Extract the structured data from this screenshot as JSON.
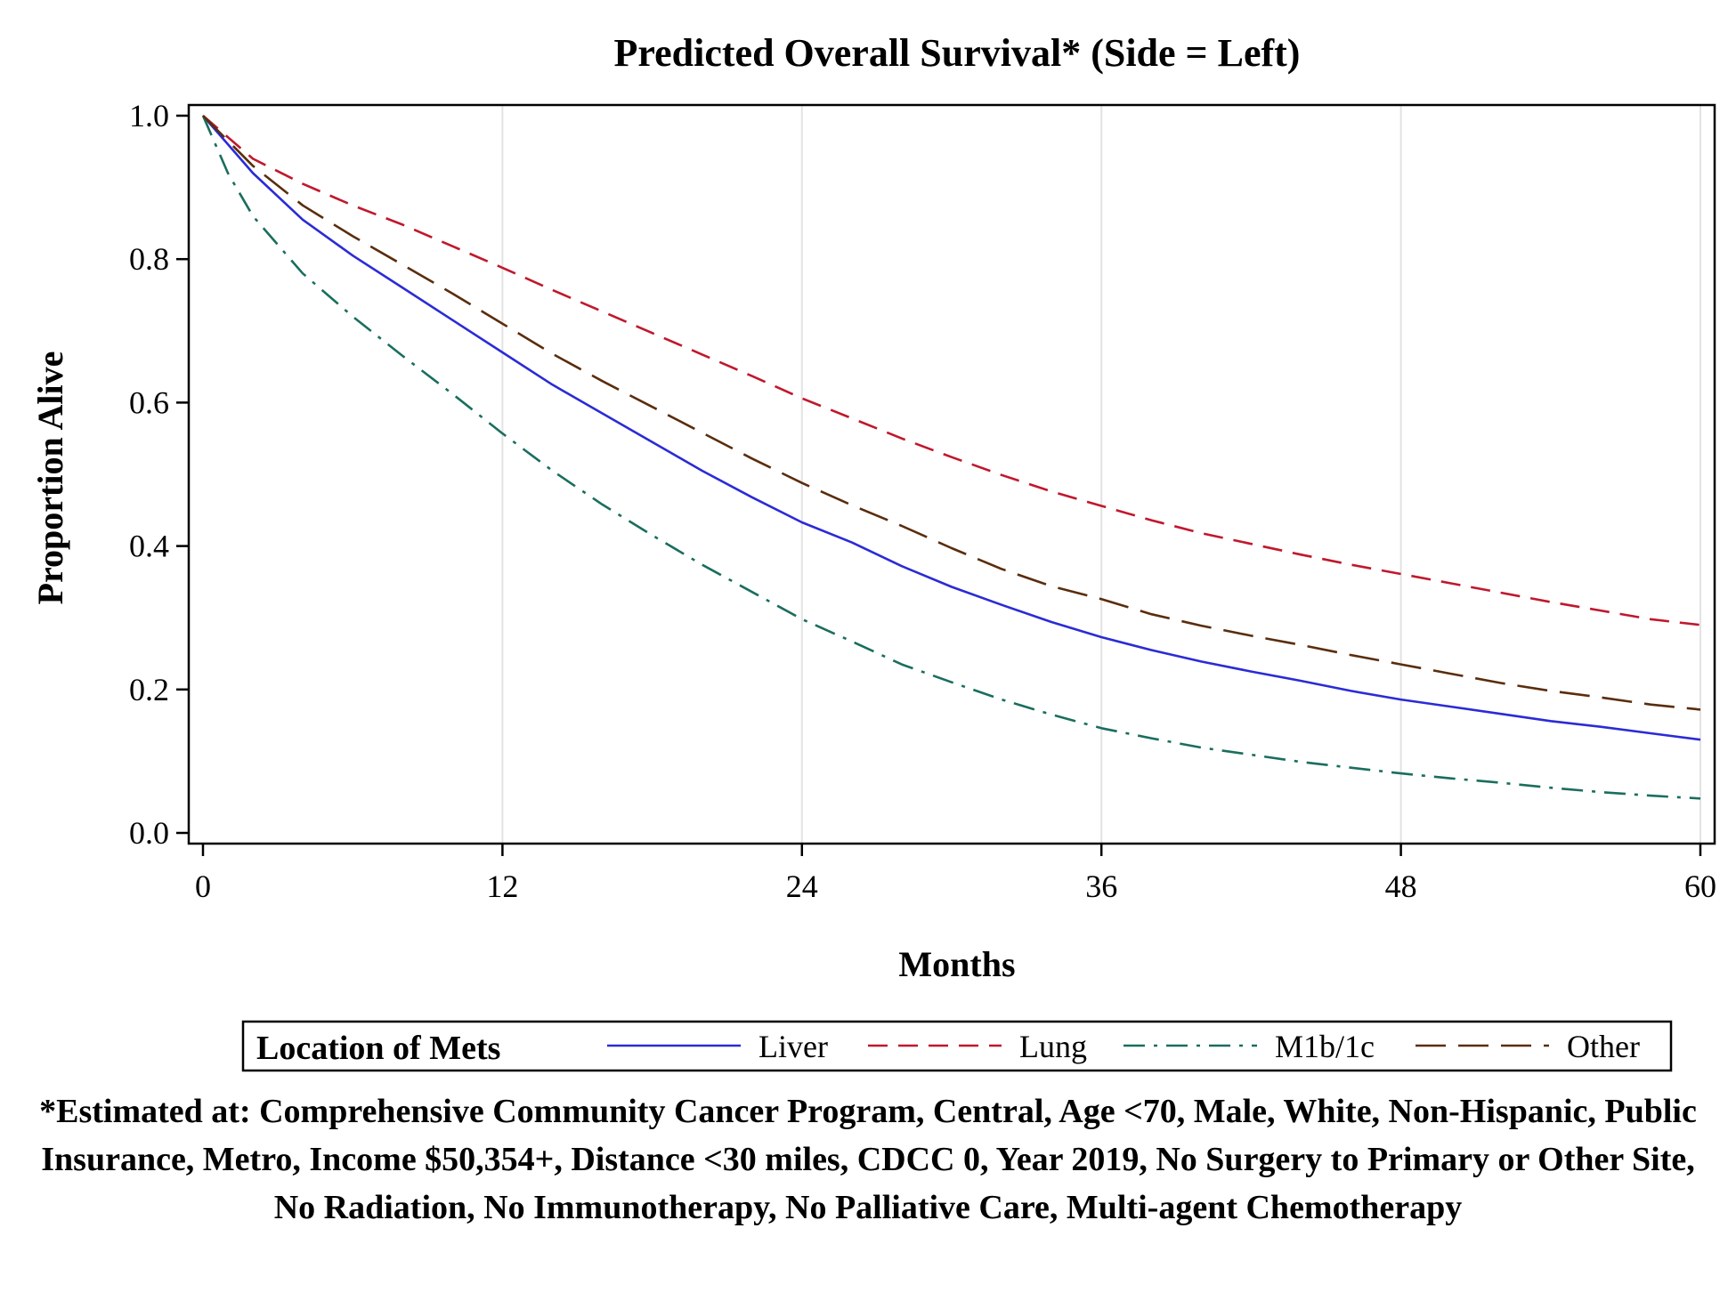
{
  "chart_data": {
    "type": "line",
    "title": "Predicted Overall Survival* (Side = Left)",
    "xlabel": "Months",
    "ylabel": "Proportion Alive",
    "xlim": [
      0,
      60.5
    ],
    "ylim": [
      0,
      1.0
    ],
    "x_ticks": [
      0,
      12,
      24,
      36,
      48,
      60
    ],
    "x_tick_labels": [
      "0",
      "12",
      "24",
      "36",
      "48",
      "60"
    ],
    "y_ticks": [
      0.0,
      0.2,
      0.4,
      0.6,
      0.8,
      1.0
    ],
    "y_tick_labels": [
      "0.0",
      "0.2",
      "0.4",
      "0.6",
      "0.8",
      "1.0"
    ],
    "grid": "vertical",
    "legend": {
      "title": "Location of Mets",
      "placement": "bottom"
    },
    "series": [
      {
        "name": "Liver",
        "color": "#2b2bd6",
        "dash": "solid",
        "points": [
          [
            0,
            1.0
          ],
          [
            2,
            0.92
          ],
          [
            4,
            0.855
          ],
          [
            6,
            0.805
          ],
          [
            8,
            0.76
          ],
          [
            10,
            0.715
          ],
          [
            12,
            0.67
          ],
          [
            14,
            0.625
          ],
          [
            16,
            0.585
          ],
          [
            18,
            0.545
          ],
          [
            20,
            0.505
          ],
          [
            22,
            0.468
          ],
          [
            24,
            0.433
          ],
          [
            26,
            0.405
          ],
          [
            28,
            0.372
          ],
          [
            30,
            0.343
          ],
          [
            32,
            0.318
          ],
          [
            34,
            0.294
          ],
          [
            36,
            0.273
          ],
          [
            38,
            0.255
          ],
          [
            40,
            0.239
          ],
          [
            42,
            0.225
          ],
          [
            44,
            0.212
          ],
          [
            46,
            0.198
          ],
          [
            48,
            0.186
          ],
          [
            50,
            0.176
          ],
          [
            52,
            0.166
          ],
          [
            54,
            0.156
          ],
          [
            56,
            0.148
          ],
          [
            58,
            0.139
          ],
          [
            60,
            0.13
          ]
        ]
      },
      {
        "name": "Lung",
        "color": "#c0182c",
        "dash": "dashed",
        "points": [
          [
            0,
            1.0
          ],
          [
            2,
            0.94
          ],
          [
            4,
            0.905
          ],
          [
            6,
            0.875
          ],
          [
            8,
            0.848
          ],
          [
            10,
            0.818
          ],
          [
            12,
            0.788
          ],
          [
            14,
            0.757
          ],
          [
            16,
            0.727
          ],
          [
            18,
            0.697
          ],
          [
            20,
            0.667
          ],
          [
            22,
            0.637
          ],
          [
            24,
            0.606
          ],
          [
            26,
            0.578
          ],
          [
            28,
            0.55
          ],
          [
            30,
            0.524
          ],
          [
            32,
            0.499
          ],
          [
            34,
            0.476
          ],
          [
            36,
            0.456
          ],
          [
            38,
            0.436
          ],
          [
            40,
            0.418
          ],
          [
            42,
            0.403
          ],
          [
            44,
            0.388
          ],
          [
            46,
            0.374
          ],
          [
            48,
            0.361
          ],
          [
            50,
            0.348
          ],
          [
            52,
            0.335
          ],
          [
            54,
            0.322
          ],
          [
            56,
            0.31
          ],
          [
            58,
            0.298
          ],
          [
            60,
            0.29
          ]
        ]
      },
      {
        "name": "M1b/1c",
        "color": "#1a6e5e",
        "dash": "dashdot",
        "points": [
          [
            0,
            1.0
          ],
          [
            1,
            0.92
          ],
          [
            2,
            0.86
          ],
          [
            4,
            0.78
          ],
          [
            6,
            0.72
          ],
          [
            8,
            0.665
          ],
          [
            10,
            0.612
          ],
          [
            12,
            0.557
          ],
          [
            14,
            0.505
          ],
          [
            16,
            0.458
          ],
          [
            18,
            0.415
          ],
          [
            20,
            0.374
          ],
          [
            22,
            0.336
          ],
          [
            24,
            0.298
          ],
          [
            26,
            0.267
          ],
          [
            28,
            0.235
          ],
          [
            30,
            0.21
          ],
          [
            32,
            0.186
          ],
          [
            34,
            0.165
          ],
          [
            36,
            0.146
          ],
          [
            38,
            0.132
          ],
          [
            40,
            0.119
          ],
          [
            42,
            0.109
          ],
          [
            44,
            0.099
          ],
          [
            46,
            0.091
          ],
          [
            48,
            0.083
          ],
          [
            50,
            0.076
          ],
          [
            52,
            0.07
          ],
          [
            54,
            0.063
          ],
          [
            56,
            0.057
          ],
          [
            58,
            0.052
          ],
          [
            60,
            0.048
          ]
        ]
      },
      {
        "name": "Other",
        "color": "#5a2d0c",
        "dash": "longdash",
        "points": [
          [
            0,
            1.0
          ],
          [
            2,
            0.93
          ],
          [
            4,
            0.875
          ],
          [
            6,
            0.832
          ],
          [
            8,
            0.792
          ],
          [
            10,
            0.752
          ],
          [
            12,
            0.71
          ],
          [
            14,
            0.668
          ],
          [
            16,
            0.63
          ],
          [
            18,
            0.594
          ],
          [
            20,
            0.558
          ],
          [
            22,
            0.522
          ],
          [
            24,
            0.488
          ],
          [
            26,
            0.457
          ],
          [
            28,
            0.428
          ],
          [
            30,
            0.397
          ],
          [
            32,
            0.368
          ],
          [
            34,
            0.344
          ],
          [
            36,
            0.326
          ],
          [
            38,
            0.305
          ],
          [
            40,
            0.289
          ],
          [
            42,
            0.275
          ],
          [
            44,
            0.262
          ],
          [
            46,
            0.248
          ],
          [
            48,
            0.235
          ],
          [
            50,
            0.222
          ],
          [
            52,
            0.209
          ],
          [
            54,
            0.198
          ],
          [
            56,
            0.189
          ],
          [
            58,
            0.179
          ],
          [
            60,
            0.172
          ]
        ]
      }
    ]
  },
  "footnote": "*Estimated at: Comprehensive Community Cancer Program, Central, Age <70, Male, White, Non-Hispanic, Public Insurance, Metro, Income $50,354+, Distance <30 miles, CDCC 0, Year 2019, No Surgery to Primary or Other Site, No Radiation, No Immunotherapy, No Palliative Care, Multi-agent Chemotherapy"
}
